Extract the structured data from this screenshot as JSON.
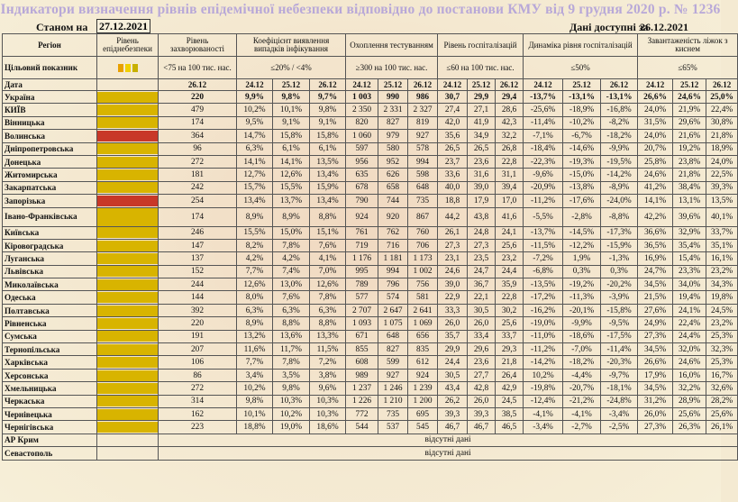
{
  "title": "Індикатори визначення рівнів епідемічної небезпеки відповідно до постанови КМУ від 9 грудня 2020 р. № 1236",
  "as_of_label": "Станом на",
  "as_of_date": "27.12.2021",
  "data_available_label": "Дані доступні за",
  "data_available_date": "26.12.2021",
  "headers": {
    "region": "Регіон",
    "level": "Рівень епіднебезпеки",
    "incidence": "Рівень захворюваності",
    "detection": "Коефіцієнт виявлення випадків інфікування",
    "testing": "Охоплення тестуванням",
    "hosp": "Рівень госпіталізацій",
    "hosp_dyn": "Динаміка рівня госпіталізацій",
    "beds": "Завантаженість ліжок з киснем"
  },
  "target_row": {
    "label": "Цільовий показник",
    "incidence": "<75 на 100 тис. нас.",
    "detection": "≤20% / <4%",
    "testing": "≥300 на 100 тис. нас.",
    "hosp": "≤60 на 100 тис. нас.",
    "hosp_dyn": "≤50%",
    "beds": "≤65%"
  },
  "level_legend": [
    "#e8a000",
    "#f0d000",
    "#c8b000"
  ],
  "date_row": {
    "label": "Дата",
    "incidence": "26.12",
    "d1": "24.12",
    "d2": "25.12",
    "d3": "26.12"
  },
  "no_data_text": "відсутні дані",
  "rows": [
    {
      "name": "Україна",
      "color": "#d8b400",
      "inc": "220",
      "det": [
        "9,9%",
        "9,8%",
        "9,7%"
      ],
      "test": [
        "1 003",
        "990",
        "986"
      ],
      "hosp": [
        "30,7",
        "29,9",
        "29,4"
      ],
      "dyn": [
        "-13,7%",
        "-13,1%",
        "-13,1%"
      ],
      "beds": [
        "26,6%",
        "24,6%",
        "25,0%"
      ],
      "bold": true
    },
    {
      "name": "КИЇВ",
      "color": "#d8b400",
      "inc": "479",
      "det": [
        "10,2%",
        "10,1%",
        "9,8%"
      ],
      "test": [
        "2 350",
        "2 331",
        "2 327"
      ],
      "hosp": [
        "27,4",
        "27,1",
        "28,6"
      ],
      "dyn": [
        "-25,6%",
        "-18,9%",
        "-16,8%"
      ],
      "beds": [
        "24,0%",
        "21,9%",
        "22,4%"
      ]
    },
    {
      "name": "Вінницька",
      "color": "#d8b400",
      "inc": "174",
      "det": [
        "9,5%",
        "9,1%",
        "9,1%"
      ],
      "test": [
        "820",
        "827",
        "819"
      ],
      "hosp": [
        "42,0",
        "41,9",
        "42,3"
      ],
      "dyn": [
        "-11,4%",
        "-10,2%",
        "-8,2%"
      ],
      "beds": [
        "31,5%",
        "29,6%",
        "30,8%"
      ]
    },
    {
      "name": "Волинська",
      "color": "#c83828",
      "inc": "364",
      "det": [
        "14,7%",
        "15,8%",
        "15,8%"
      ],
      "test": [
        "1 060",
        "979",
        "927"
      ],
      "hosp": [
        "35,6",
        "34,9",
        "32,2"
      ],
      "dyn": [
        "-7,1%",
        "-6,7%",
        "-18,2%"
      ],
      "beds": [
        "24,0%",
        "21,6%",
        "21,8%"
      ]
    },
    {
      "name": "Дніпропетровська",
      "color": "#d8b400",
      "inc": "96",
      "det": [
        "6,3%",
        "6,1%",
        "6,1%"
      ],
      "test": [
        "597",
        "580",
        "578"
      ],
      "hosp": [
        "26,5",
        "26,5",
        "26,8"
      ],
      "dyn": [
        "-18,4%",
        "-14,6%",
        "-9,9%"
      ],
      "beds": [
        "20,7%",
        "19,2%",
        "18,9%"
      ]
    },
    {
      "name": "Донецька",
      "color": "#d8b400",
      "inc": "272",
      "det": [
        "14,1%",
        "14,1%",
        "13,5%"
      ],
      "test": [
        "956",
        "952",
        "994"
      ],
      "hosp": [
        "23,7",
        "23,6",
        "22,8"
      ],
      "dyn": [
        "-22,3%",
        "-19,3%",
        "-19,5%"
      ],
      "beds": [
        "25,8%",
        "23,8%",
        "24,0%"
      ]
    },
    {
      "name": "Житомирська",
      "color": "#d8b400",
      "inc": "181",
      "det": [
        "12,7%",
        "12,6%",
        "13,4%"
      ],
      "test": [
        "635",
        "626",
        "598"
      ],
      "hosp": [
        "33,6",
        "31,6",
        "31,1"
      ],
      "dyn": [
        "-9,6%",
        "-15,0%",
        "-14,2%"
      ],
      "beds": [
        "24,6%",
        "21,8%",
        "22,5%"
      ]
    },
    {
      "name": "Закарпатська",
      "color": "#d8b400",
      "inc": "242",
      "det": [
        "15,7%",
        "15,5%",
        "15,9%"
      ],
      "test": [
        "678",
        "658",
        "648"
      ],
      "hosp": [
        "40,0",
        "39,0",
        "39,4"
      ],
      "dyn": [
        "-20,9%",
        "-13,8%",
        "-8,9%"
      ],
      "beds": [
        "41,2%",
        "38,4%",
        "39,3%"
      ]
    },
    {
      "name": "Запорізька",
      "color": "#c83828",
      "inc": "254",
      "det": [
        "13,4%",
        "13,7%",
        "13,4%"
      ],
      "test": [
        "790",
        "744",
        "735"
      ],
      "hosp": [
        "18,8",
        "17,9",
        "17,0"
      ],
      "dyn": [
        "-11,2%",
        "-17,6%",
        "-24,0%"
      ],
      "beds": [
        "14,1%",
        "13,1%",
        "13,5%"
      ]
    },
    {
      "name": "Івано-Франківська",
      "color": "#d8b400",
      "inc": "174",
      "det": [
        "8,9%",
        "8,9%",
        "8,8%"
      ],
      "test": [
        "924",
        "920",
        "867"
      ],
      "hosp": [
        "44,2",
        "43,8",
        "41,6"
      ],
      "dyn": [
        "-5,5%",
        "-2,8%",
        "-8,8%"
      ],
      "beds": [
        "42,2%",
        "39,6%",
        "40,1%"
      ],
      "tall": true
    },
    {
      "name": "Київська",
      "color": "#d8b400",
      "inc": "246",
      "det": [
        "15,5%",
        "15,0%",
        "15,1%"
      ],
      "test": [
        "761",
        "762",
        "760"
      ],
      "hosp": [
        "26,1",
        "24,8",
        "24,1"
      ],
      "dyn": [
        "-13,7%",
        "-14,5%",
        "-17,3%"
      ],
      "beds": [
        "36,6%",
        "32,9%",
        "33,7%"
      ]
    },
    {
      "name": "Кіровоградська",
      "color": "#d8b400",
      "inc": "147",
      "det": [
        "8,2%",
        "7,8%",
        "7,6%"
      ],
      "test": [
        "719",
        "716",
        "706"
      ],
      "hosp": [
        "27,3",
        "27,3",
        "25,6"
      ],
      "dyn": [
        "-11,5%",
        "-12,2%",
        "-15,9%"
      ],
      "beds": [
        "36,5%",
        "35,4%",
        "35,1%"
      ]
    },
    {
      "name": "Луганська",
      "color": "#d8b400",
      "inc": "137",
      "det": [
        "4,2%",
        "4,2%",
        "4,1%"
      ],
      "test": [
        "1 176",
        "1 181",
        "1 173"
      ],
      "hosp": [
        "23,1",
        "23,5",
        "23,2"
      ],
      "dyn": [
        "-7,2%",
        "1,9%",
        "-1,3%"
      ],
      "beds": [
        "16,9%",
        "15,4%",
        "16,1%"
      ]
    },
    {
      "name": "Львівська",
      "color": "#d8b400",
      "inc": "152",
      "det": [
        "7,7%",
        "7,4%",
        "7,0%"
      ],
      "test": [
        "995",
        "994",
        "1 002"
      ],
      "hosp": [
        "24,6",
        "24,7",
        "24,4"
      ],
      "dyn": [
        "-6,8%",
        "0,3%",
        "0,3%"
      ],
      "beds": [
        "24,7%",
        "23,3%",
        "23,2%"
      ]
    },
    {
      "name": "Миколаївська",
      "color": "#d8b400",
      "inc": "244",
      "det": [
        "12,6%",
        "13,0%",
        "12,6%"
      ],
      "test": [
        "789",
        "796",
        "756"
      ],
      "hosp": [
        "39,0",
        "36,7",
        "35,9"
      ],
      "dyn": [
        "-13,5%",
        "-19,2%",
        "-20,2%"
      ],
      "beds": [
        "34,5%",
        "34,0%",
        "34,3%"
      ]
    },
    {
      "name": "Одеська",
      "color": "#d8b400",
      "inc": "144",
      "det": [
        "8,0%",
        "7,6%",
        "7,8%"
      ],
      "test": [
        "577",
        "574",
        "581"
      ],
      "hosp": [
        "22,9",
        "22,1",
        "22,8"
      ],
      "dyn": [
        "-17,2%",
        "-11,3%",
        "-3,9%"
      ],
      "beds": [
        "21,5%",
        "19,4%",
        "19,8%"
      ]
    },
    {
      "name": "Полтавська",
      "color": "#d8b400",
      "inc": "392",
      "det": [
        "6,3%",
        "6,3%",
        "6,3%"
      ],
      "test": [
        "2 707",
        "2 647",
        "2 641"
      ],
      "hosp": [
        "33,3",
        "30,5",
        "30,2"
      ],
      "dyn": [
        "-16,2%",
        "-20,1%",
        "-15,8%"
      ],
      "beds": [
        "27,6%",
        "24,1%",
        "24,5%"
      ]
    },
    {
      "name": "Рівненська",
      "color": "#d8b400",
      "inc": "220",
      "det": [
        "8,9%",
        "8,8%",
        "8,8%"
      ],
      "test": [
        "1 093",
        "1 075",
        "1 069"
      ],
      "hosp": [
        "26,0",
        "26,0",
        "25,6"
      ],
      "dyn": [
        "-19,0%",
        "-9,9%",
        "-9,5%"
      ],
      "beds": [
        "24,9%",
        "22,4%",
        "23,2%"
      ]
    },
    {
      "name": "Сумська",
      "color": "#d8b400",
      "inc": "191",
      "det": [
        "13,2%",
        "13,6%",
        "13,3%"
      ],
      "test": [
        "671",
        "648",
        "656"
      ],
      "hosp": [
        "35,7",
        "33,4",
        "33,7"
      ],
      "dyn": [
        "-11,0%",
        "-18,6%",
        "-17,5%"
      ],
      "beds": [
        "27,3%",
        "24,4%",
        "25,3%"
      ]
    },
    {
      "name": "Тернопільська",
      "color": "#d8b400",
      "inc": "207",
      "det": [
        "11,6%",
        "11,7%",
        "11,5%"
      ],
      "test": [
        "855",
        "827",
        "835"
      ],
      "hosp": [
        "29,9",
        "29,6",
        "29,3"
      ],
      "dyn": [
        "-11,2%",
        "-7,0%",
        "-11,4%"
      ],
      "beds": [
        "34,5%",
        "32,0%",
        "32,3%"
      ]
    },
    {
      "name": "Харківська",
      "color": "#d8b400",
      "inc": "106",
      "det": [
        "7,7%",
        "7,8%",
        "7,2%"
      ],
      "test": [
        "608",
        "599",
        "612"
      ],
      "hosp": [
        "24,4",
        "23,6",
        "21,8"
      ],
      "dyn": [
        "-14,2%",
        "-18,2%",
        "-20,3%"
      ],
      "beds": [
        "26,6%",
        "24,6%",
        "25,3%"
      ]
    },
    {
      "name": "Херсонська",
      "color": "#d8b400",
      "inc": "86",
      "det": [
        "3,4%",
        "3,5%",
        "3,8%"
      ],
      "test": [
        "989",
        "927",
        "924"
      ],
      "hosp": [
        "30,5",
        "27,7",
        "26,4"
      ],
      "dyn": [
        "10,2%",
        "-4,4%",
        "-9,7%"
      ],
      "beds": [
        "17,9%",
        "16,0%",
        "16,7%"
      ]
    },
    {
      "name": "Хмельницька",
      "color": "#d8b400",
      "inc": "272",
      "det": [
        "10,2%",
        "9,8%",
        "9,6%"
      ],
      "test": [
        "1 237",
        "1 246",
        "1 239"
      ],
      "hosp": [
        "43,4",
        "42,8",
        "42,9"
      ],
      "dyn": [
        "-19,8%",
        "-20,7%",
        "-18,1%"
      ],
      "beds": [
        "34,5%",
        "32,2%",
        "32,6%"
      ]
    },
    {
      "name": "Черкаська",
      "color": "#d8b400",
      "inc": "314",
      "det": [
        "9,8%",
        "10,3%",
        "10,3%"
      ],
      "test": [
        "1 226",
        "1 210",
        "1 200"
      ],
      "hosp": [
        "26,2",
        "26,0",
        "24,5"
      ],
      "dyn": [
        "-12,4%",
        "-21,2%",
        "-24,8%"
      ],
      "beds": [
        "31,2%",
        "28,9%",
        "28,2%"
      ]
    },
    {
      "name": "Чернівецька",
      "color": "#d8b400",
      "inc": "162",
      "det": [
        "10,1%",
        "10,2%",
        "10,3%"
      ],
      "test": [
        "772",
        "735",
        "695"
      ],
      "hosp": [
        "39,3",
        "39,3",
        "38,5"
      ],
      "dyn": [
        "-4,1%",
        "-4,1%",
        "-3,4%"
      ],
      "beds": [
        "26,0%",
        "25,6%",
        "25,6%"
      ]
    },
    {
      "name": "Чернігівська",
      "color": "#d8b400",
      "inc": "223",
      "det": [
        "18,8%",
        "19,0%",
        "18,6%"
      ],
      "test": [
        "544",
        "537",
        "545"
      ],
      "hosp": [
        "46,7",
        "46,7",
        "46,5"
      ],
      "dyn": [
        "-3,4%",
        "-2,7%",
        "-2,5%"
      ],
      "beds": [
        "27,3%",
        "26,3%",
        "26,1%"
      ]
    }
  ],
  "nodata_rows": [
    {
      "name": "АР Крим"
    },
    {
      "name": "Севастополь"
    }
  ]
}
